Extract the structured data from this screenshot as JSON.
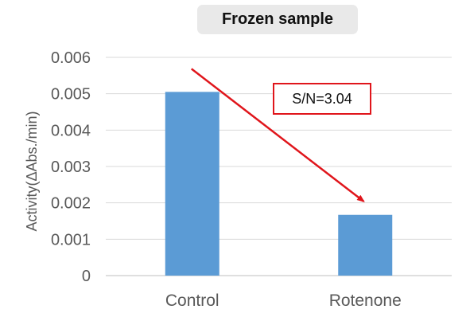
{
  "chart_data": {
    "type": "bar",
    "title": "Frozen sample",
    "ylabel": "Activity(ΔAbs./min)",
    "xlabel": "",
    "categories": [
      "Control",
      "Rotenone"
    ],
    "values": [
      0.00505,
      0.00167
    ],
    "ylim": [
      0,
      0.006
    ],
    "yticks": [
      0,
      0.001,
      0.002,
      0.003,
      0.004,
      0.005,
      0.006
    ],
    "ytick_labels": [
      "0",
      "0.001",
      "0.002",
      "0.003",
      "0.004",
      "0.005",
      "0.006"
    ],
    "grid": true,
    "legend": "none",
    "annotation": {
      "text": "S/N=3.04",
      "arrow": "from Control bar top toward Rotenone bar top"
    },
    "colors": {
      "bar": "#5b9bd5",
      "grid": "#d9d9d9",
      "arrow": "#e0151b",
      "annotation_border": "#e0151b",
      "title_background": "#e9e9e9",
      "axis_text": "#595959"
    }
  }
}
